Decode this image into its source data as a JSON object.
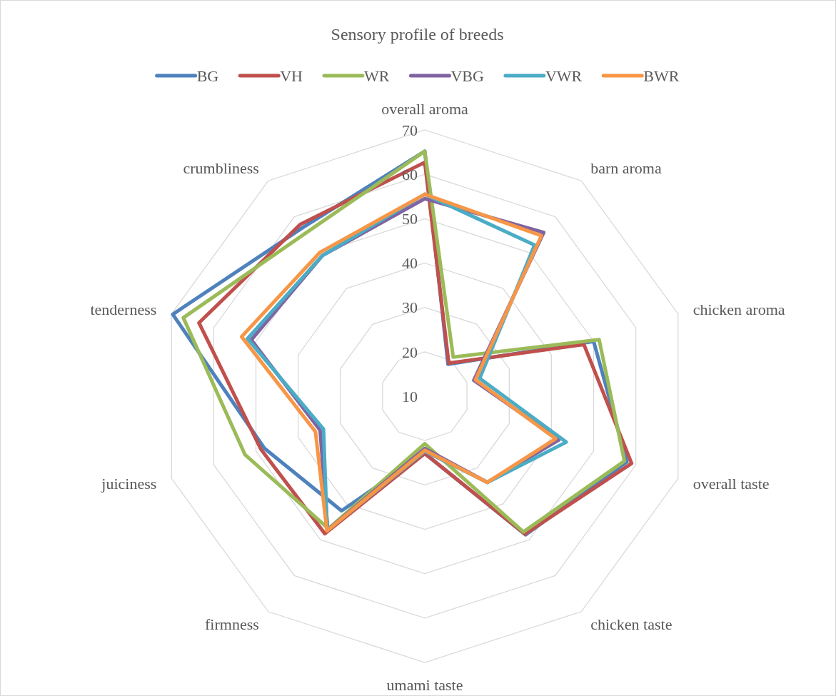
{
  "chart_data": {
    "type": "radar",
    "title": "Sensory profile of breeds",
    "categories": [
      "overall aroma",
      "barn aroma",
      "chicken aroma",
      "overall taste",
      "chicken taste",
      "umami taste",
      "firmness",
      "juiciness",
      "tenderness",
      "crumbliness"
    ],
    "ylim": [
      10,
      70
    ],
    "yticks": [
      10,
      20,
      30,
      40,
      50,
      60,
      70
    ],
    "grid": true,
    "legend": "top",
    "marker": "none",
    "series": [
      {
        "name": "BG",
        "color": "#4f81bd",
        "values": [
          65.2,
          18.9,
          50.0,
          57.9,
          48.6,
          22.9,
          41.9,
          48.0,
          69.7,
          56.9
        ]
      },
      {
        "name": "VH",
        "color": "#c0504d",
        "values": [
          62.7,
          19.2,
          47.7,
          59.0,
          48.4,
          22.9,
          48.3,
          48.8,
          63.5,
          57.8
        ]
      },
      {
        "name": "WR",
        "color": "#9bbb59",
        "values": [
          65.2,
          20.9,
          51.3,
          57.3,
          47.8,
          20.7,
          46.9,
          52.6,
          67.2,
          55.5
        ]
      },
      {
        "name": "VBG",
        "color": "#8064a2",
        "values": [
          54.5,
          55.6,
          21.6,
          41.8,
          34.0,
          21.8,
          47.2,
          34.8,
          51.1,
          49.2
        ]
      },
      {
        "name": "VWR",
        "color": "#4bacc6",
        "values": [
          55.5,
          52.1,
          23.0,
          43.5,
          34.0,
          22.4,
          47.4,
          34.0,
          52.0,
          49.2
        ]
      },
      {
        "name": "BWR",
        "color": "#f79646",
        "values": [
          55.5,
          54.7,
          22.0,
          41.0,
          34.0,
          22.2,
          47.5,
          35.9,
          53.4,
          50.1
        ]
      }
    ]
  }
}
